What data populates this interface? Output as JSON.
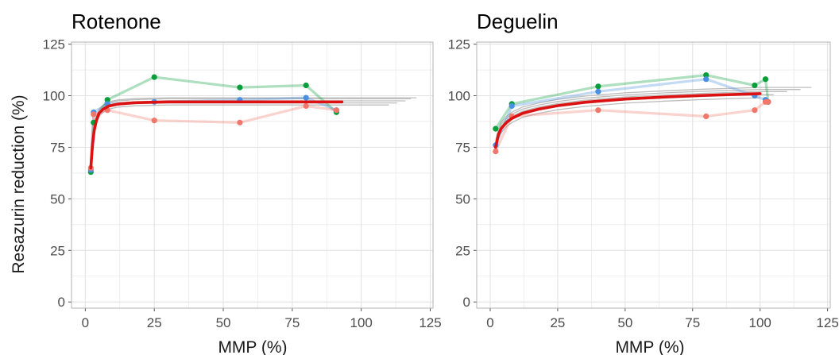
{
  "figure": {
    "ylabel": "Resazurin reduction (%)",
    "colors": {
      "green": "#0a9e3a",
      "blue": "#4a90e2",
      "salmon": "#f0776a",
      "fit": "#dd1111",
      "bootstrap": "#bdbdbd",
      "grid": "#e3e3e3",
      "panel_border": "#b3b3b3"
    }
  },
  "chart_data": [
    {
      "type": "line",
      "title": "Rotenone",
      "xlabel": "MMP (%)",
      "ylabel": "Resazurin reduction (%)",
      "xlim": [
        -5,
        126
      ],
      "ylim": [
        -3,
        126
      ],
      "x_ticks": [
        0,
        25,
        50,
        75,
        100,
        125
      ],
      "y_ticks": [
        0,
        25,
        50,
        75,
        100,
        125
      ],
      "grid": true,
      "series": [
        {
          "color": "#0a9e3a",
          "x": [
            2.0,
            3.0,
            8.0,
            25.0,
            56.0,
            80.0,
            91.0
          ],
          "y": [
            63,
            87,
            98,
            109,
            104,
            105,
            92
          ]
        },
        {
          "color": "#4a90e2",
          "x": [
            2.0,
            3.0,
            8.0,
            25.0,
            56.0,
            80.0,
            91.0
          ],
          "y": [
            64,
            92,
            96,
            97,
            98,
            99,
            93
          ]
        },
        {
          "color": "#f0776a",
          "x": [
            2.0,
            3.0,
            8.0,
            25.0,
            56.0,
            80.0,
            91.0
          ],
          "y": [
            65,
            91,
            93,
            88,
            87,
            95,
            93
          ]
        }
      ],
      "fit": {
        "color": "#dd1111",
        "x": [
          2,
          2.3,
          2.7,
          3.2,
          4,
          5,
          6.5,
          8.5,
          12,
          18,
          30,
          50,
          70,
          93
        ],
        "y": [
          65,
          71,
          77,
          83,
          88,
          91.5,
          93.5,
          95,
          96,
          96.6,
          97,
          97,
          97,
          97
        ]
      },
      "bootstrap": {
        "color": "#bdbdbd",
        "x_end": [
          110,
          113,
          116,
          118,
          120
        ],
        "y_plateau": [
          95.5,
          96.5,
          97.5,
          98.5,
          99
        ]
      }
    },
    {
      "type": "line",
      "title": "Deguelin",
      "xlabel": "MMP (%)",
      "ylabel": "",
      "xlim": [
        -5,
        126
      ],
      "ylim": [
        -3,
        126
      ],
      "x_ticks": [
        0,
        25,
        50,
        75,
        100,
        125
      ],
      "y_ticks": [
        0,
        25,
        50,
        75,
        100,
        125
      ],
      "grid": true,
      "series": [
        {
          "color": "#0a9e3a",
          "x": [
            2.0,
            8.0,
            40.0,
            80.0,
            98.0,
            102.0,
            103.0
          ],
          "y": [
            84,
            96,
            104.5,
            110,
            105,
            108,
            97
          ]
        },
        {
          "color": "#4a90e2",
          "x": [
            2.0,
            8.0,
            40.0,
            80.0,
            98.0,
            102.0,
            103.0
          ],
          "y": [
            76,
            95,
            102,
            108,
            100,
            98,
            97
          ]
        },
        {
          "color": "#f0776a",
          "x": [
            2.0,
            8.0,
            40.0,
            80.0,
            98.0,
            102.0,
            103.0
          ],
          "y": [
            73,
            90,
            93,
            90,
            93,
            97,
            97
          ]
        }
      ],
      "fit": {
        "color": "#dd1111",
        "x": [
          2,
          3,
          4,
          6,
          8,
          12,
          18,
          25,
          35,
          50,
          65,
          80,
          100
        ],
        "y": [
          75,
          81,
          84,
          87,
          89,
          91.5,
          93.5,
          95.2,
          96.8,
          98.4,
          99.4,
          100.2,
          101
        ]
      },
      "bootstrap": {
        "color": "#bdbdbd",
        "x_end": [
          100,
          105,
          110,
          115,
          119
        ],
        "y_plateau": [
          99,
          100.5,
          102,
          103,
          104
        ]
      }
    }
  ]
}
